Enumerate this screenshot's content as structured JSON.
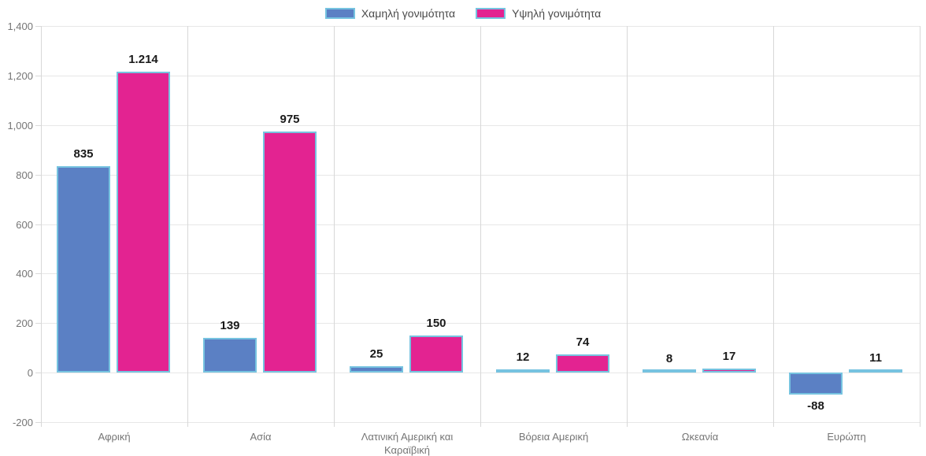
{
  "legend": {
    "items": [
      {
        "label": "Χαμηλή γονιμότητα",
        "color": "#5b80c4"
      },
      {
        "label": "Υψηλή γονιμότητα",
        "color": "#e32391"
      }
    ]
  },
  "chart_data": {
    "type": "bar",
    "title": "",
    "xlabel": "",
    "ylabel": "",
    "grid": true,
    "legend_position": "top",
    "categories": [
      "Αφρική",
      "Ασία",
      "Λατινική Αμερική και Καραϊβική",
      "Βόρεια Αμερική",
      "Ωκεανία",
      "Ευρώπη"
    ],
    "series": [
      {
        "name": "Χαμηλή γονιμότητα",
        "color": "#5b80c4",
        "values": [
          835,
          139,
          25,
          12,
          8,
          -88
        ],
        "value_labels": [
          "835",
          "139",
          "25",
          "12",
          "8",
          "-88"
        ]
      },
      {
        "name": "Υψηλή γονιμότητα",
        "color": "#e32391",
        "values": [
          1214,
          975,
          150,
          74,
          17,
          11
        ],
        "value_labels": [
          "1.214",
          "975",
          "150",
          "74",
          "17",
          "11"
        ]
      }
    ],
    "bar_border_color": "#76c3e0",
    "y_axis": {
      "min": -200,
      "max": 1400,
      "tick_step": 200,
      "tick_labels": [
        "1,400",
        "1,200",
        "1,000",
        "800",
        "600",
        "400",
        "200",
        "0",
        "-200"
      ]
    }
  },
  "colors": {
    "grid_horizontal": "#e7e7e7",
    "grid_vertical": "#d8d8d8",
    "axis_label": "#757575",
    "value_label": "#1a1a1a",
    "background": "#ffffff"
  }
}
